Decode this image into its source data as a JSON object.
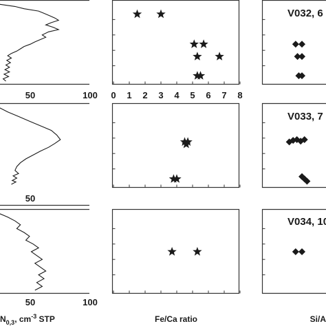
{
  "chart_data": [
    {
      "type": "line",
      "panel": "row1-col1",
      "xlim": [
        0,
        100
      ],
      "x_ticks": [
        "50",
        "100"
      ],
      "series": [
        {
          "values": [
            [
              0,
              0.0
            ],
            [
              18,
              0.03
            ],
            [
              28,
              0.06
            ],
            [
              44,
              0.09
            ],
            [
              50,
              0.12
            ],
            [
              56,
              0.15
            ],
            [
              62,
              0.18
            ],
            [
              66,
              0.21
            ],
            [
              58,
              0.24
            ],
            [
              52,
              0.27
            ],
            [
              60,
              0.3
            ],
            [
              66,
              0.33
            ],
            [
              55,
              0.36
            ],
            [
              48,
              0.4
            ],
            [
              52,
              0.43
            ],
            [
              46,
              0.46
            ],
            [
              40,
              0.49
            ],
            [
              35,
              0.52
            ],
            [
              28,
              0.55
            ],
            [
              24,
              0.58
            ],
            [
              20,
              0.61
            ],
            [
              14,
              0.64
            ],
            [
              10,
              0.67
            ],
            [
              14,
              0.7
            ],
            [
              9,
              0.73
            ],
            [
              13,
              0.76
            ],
            [
              8,
              0.79
            ],
            [
              12,
              0.82
            ],
            [
              7,
              0.85
            ],
            [
              12,
              0.88
            ],
            [
              6,
              0.91
            ],
            [
              11,
              0.94
            ],
            [
              5,
              0.97
            ],
            [
              8,
              1.0
            ]
          ]
        }
      ]
    },
    {
      "type": "line",
      "panel": "row2-col1",
      "xlim": [
        0,
        100
      ],
      "x_ticks": [
        "50"
      ],
      "series": [
        {
          "values": [
            [
              0,
              0.0
            ],
            [
              10,
              0.06
            ],
            [
              22,
              0.12
            ],
            [
              34,
              0.18
            ],
            [
              46,
              0.24
            ],
            [
              58,
              0.3
            ],
            [
              64,
              0.36
            ],
            [
              68,
              0.42
            ],
            [
              62,
              0.47
            ],
            [
              55,
              0.52
            ],
            [
              46,
              0.57
            ],
            [
              38,
              0.62
            ],
            [
              30,
              0.67
            ],
            [
              24,
              0.72
            ],
            [
              20,
              0.77
            ],
            [
              18,
              0.82
            ],
            [
              22,
              0.86
            ],
            [
              16,
              0.89
            ],
            [
              20,
              0.92
            ],
            [
              15,
              0.95
            ],
            [
              19,
              0.97
            ],
            [
              14,
              1.0
            ]
          ]
        }
      ]
    },
    {
      "type": "line",
      "panel": "row3-col1",
      "xlim": [
        0,
        100
      ],
      "x_ticks": [
        "50",
        "100"
      ],
      "series": [
        {
          "values": [
            [
              0,
              0.0
            ],
            [
              10,
              0.05
            ],
            [
              18,
              0.1
            ],
            [
              24,
              0.15
            ],
            [
              20,
              0.2
            ],
            [
              28,
              0.25
            ],
            [
              34,
              0.3
            ],
            [
              30,
              0.35
            ],
            [
              38,
              0.4
            ],
            [
              44,
              0.45
            ],
            [
              36,
              0.5
            ],
            [
              42,
              0.55
            ],
            [
              48,
              0.6
            ],
            [
              40,
              0.65
            ],
            [
              46,
              0.7
            ],
            [
              52,
              0.75
            ],
            [
              44,
              0.8
            ],
            [
              50,
              0.85
            ],
            [
              42,
              0.9
            ],
            [
              48,
              0.95
            ],
            [
              40,
              1.0
            ]
          ]
        }
      ]
    },
    {
      "type": "scatter",
      "panel": "row1-col2",
      "xlim": [
        0,
        8
      ],
      "points": [
        [
          1.5,
          0.13
        ],
        [
          3.0,
          0.13
        ],
        [
          5.1,
          0.52
        ],
        [
          5.7,
          0.52
        ],
        [
          5.3,
          0.68
        ],
        [
          6.7,
          0.68
        ],
        [
          5.3,
          0.93
        ],
        [
          5.5,
          0.93
        ]
      ]
    },
    {
      "type": "scatter",
      "panel": "row2-col2",
      "xlim": [
        0,
        8
      ],
      "points": [
        [
          4.5,
          0.45
        ],
        [
          4.7,
          0.45
        ],
        [
          4.6,
          0.48
        ],
        [
          3.8,
          0.93
        ],
        [
          4.0,
          0.93
        ]
      ]
    },
    {
      "type": "scatter",
      "panel": "row3-col2",
      "xlim": [
        0,
        8
      ],
      "x_ticks": [
        "0",
        "1",
        "2",
        "3",
        "4",
        "5",
        "6",
        "7",
        "8"
      ],
      "points": [
        [
          3.7,
          0.5
        ],
        [
          5.3,
          0.5
        ]
      ]
    },
    {
      "type": "scatter",
      "panel": "row1-col3",
      "title": "V032, 6",
      "points_frac": [
        [
          0.52,
          0.52
        ],
        [
          0.62,
          0.52
        ],
        [
          0.55,
          0.68
        ],
        [
          0.62,
          0.68
        ],
        [
          0.57,
          0.93
        ],
        [
          0.62,
          0.93
        ]
      ]
    },
    {
      "type": "scatter",
      "panel": "row2-col3",
      "title": "V033, 7",
      "points_frac": [
        [
          0.42,
          0.45
        ],
        [
          0.48,
          0.43
        ],
        [
          0.54,
          0.42
        ],
        [
          0.6,
          0.44
        ],
        [
          0.66,
          0.42
        ],
        [
          0.62,
          0.9
        ],
        [
          0.66,
          0.93
        ],
        [
          0.7,
          0.96
        ]
      ]
    },
    {
      "type": "scatter",
      "panel": "row3-col3",
      "title": "V034, 10",
      "points_frac": [
        [
          0.52,
          0.5
        ],
        [
          0.62,
          0.5
        ]
      ]
    }
  ],
  "axis_labels": {
    "col1_unit": "N",
    "col1_sub": "0,3",
    "col1_rest": ", cm",
    "col1_sup": "-3",
    "col1_tail": " STP",
    "col2": "Fe/Ca ratio",
    "col3": "Si/A"
  }
}
